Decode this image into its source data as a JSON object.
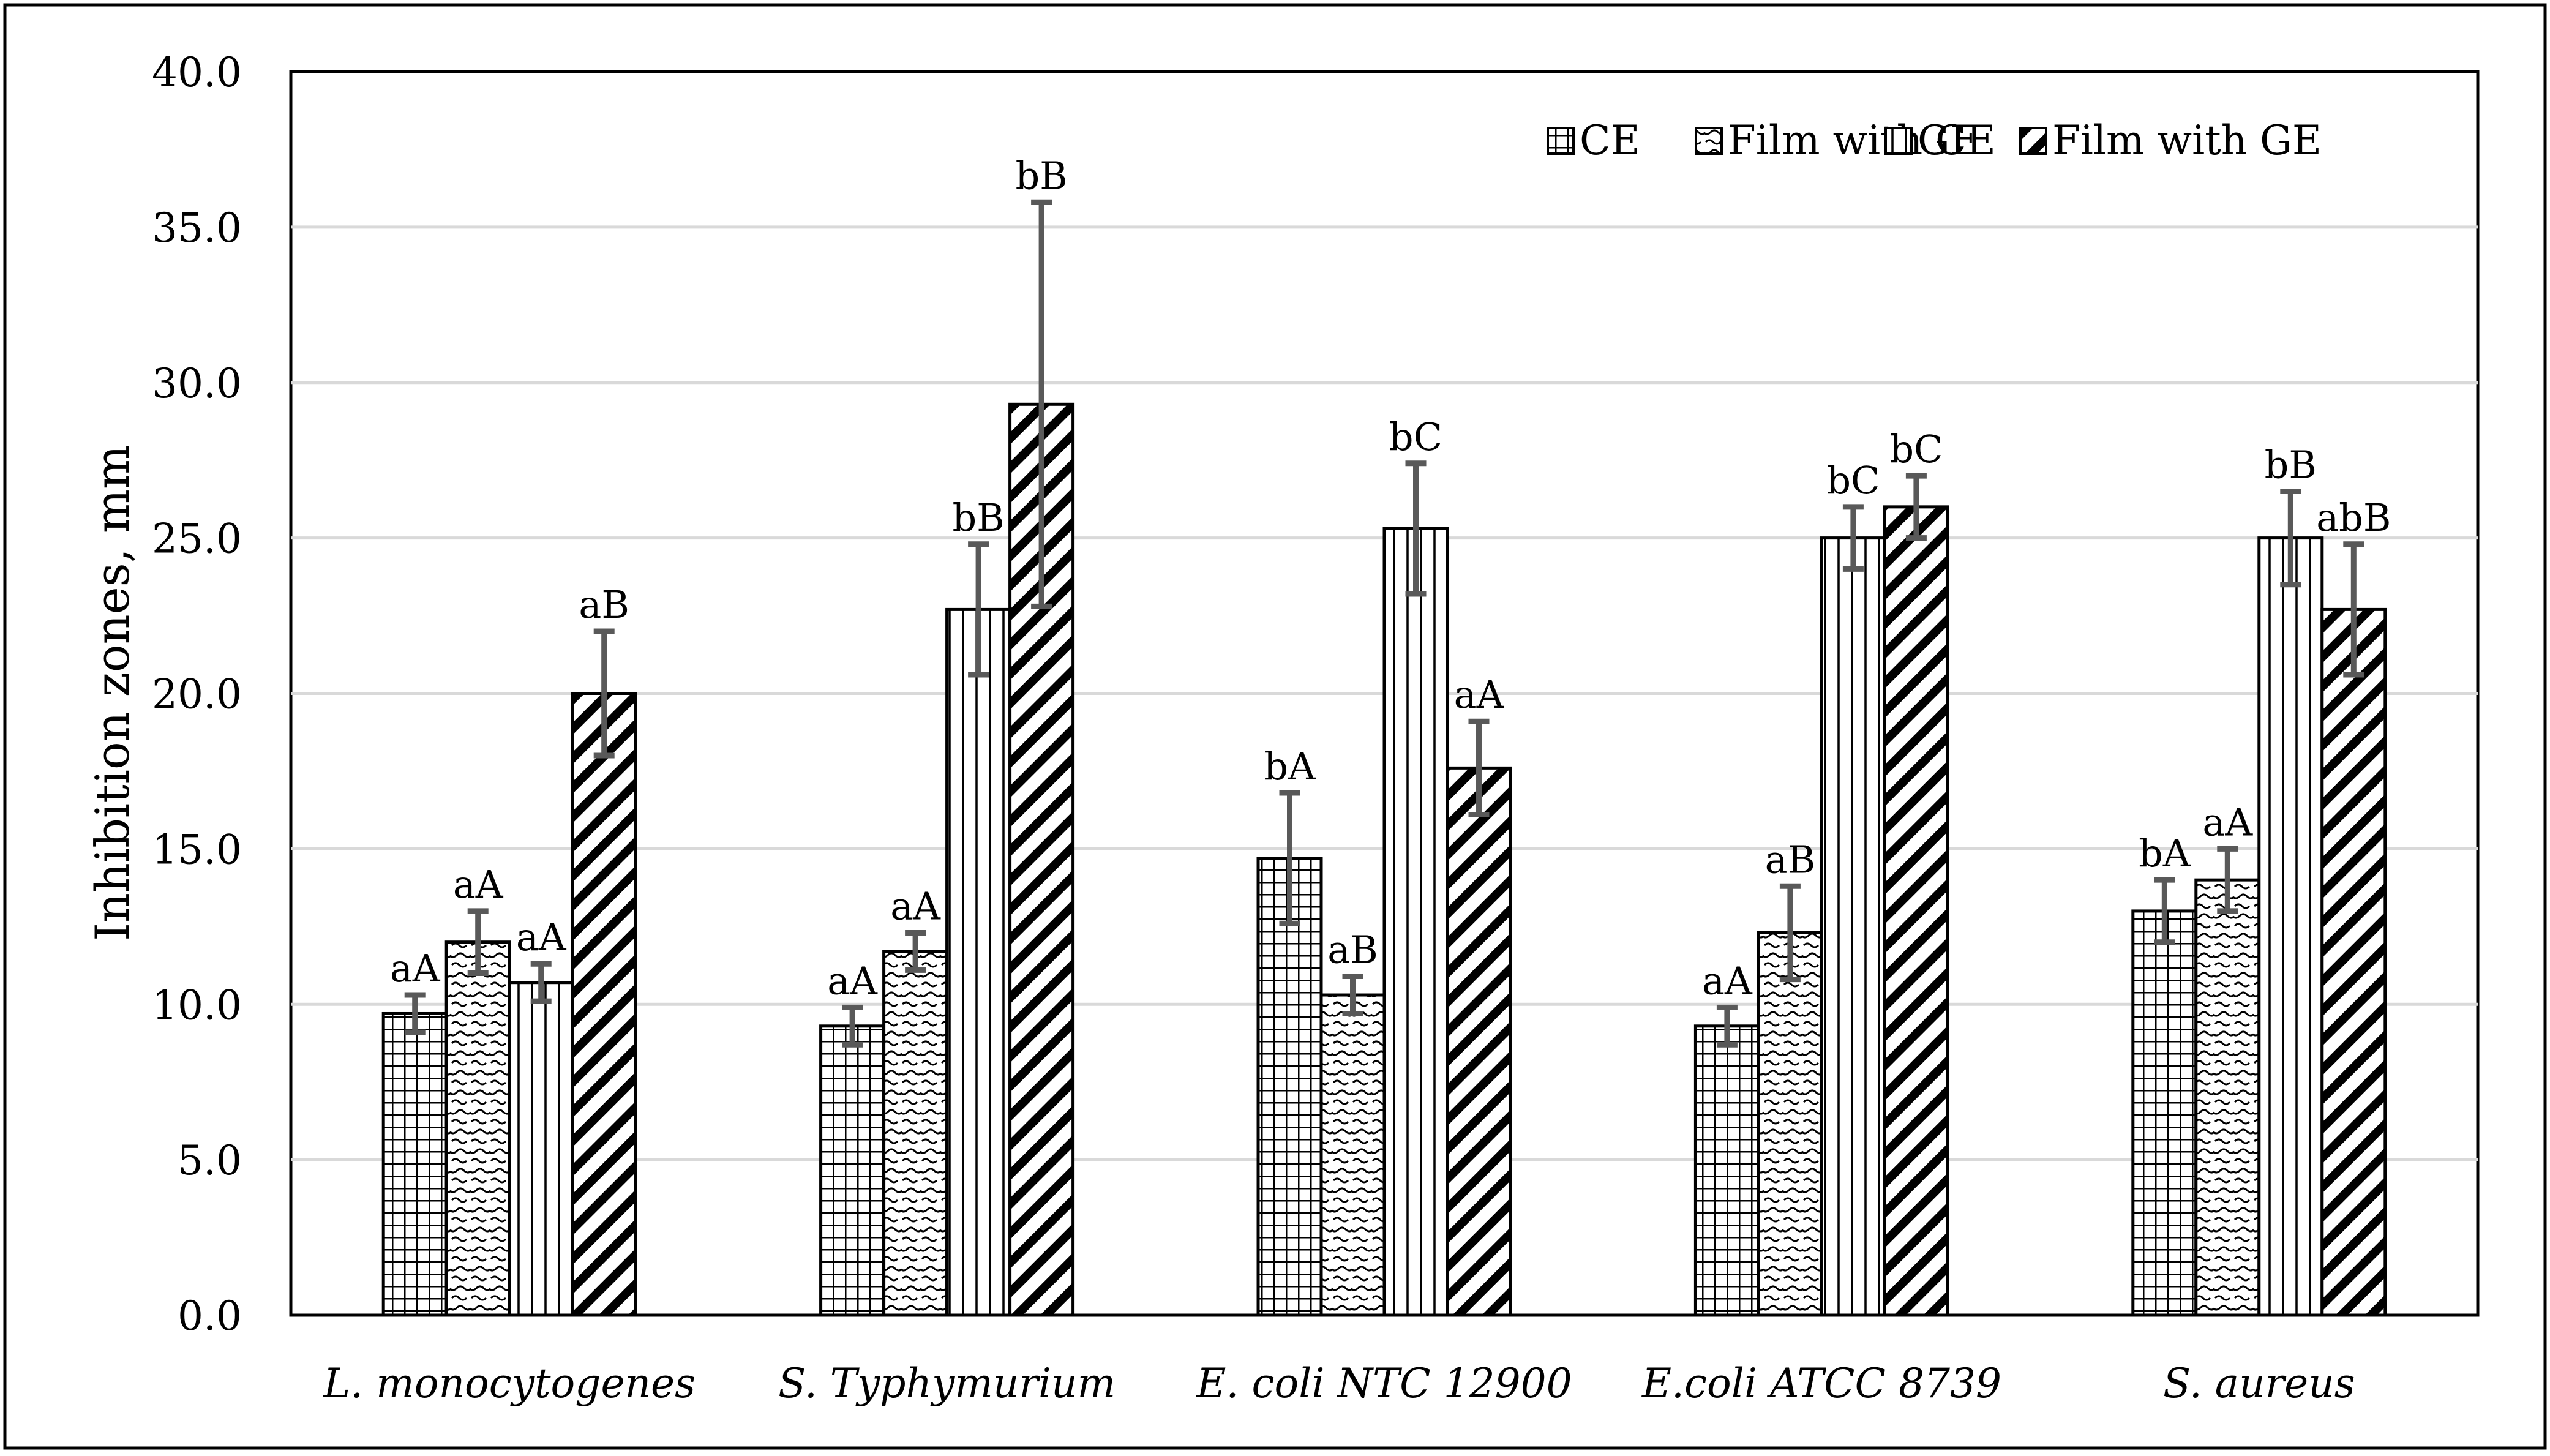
{
  "chart_data": {
    "type": "bar",
    "title": "",
    "xlabel": "",
    "ylabel": "Inhibition zones, mm",
    "ylim": [
      0,
      40
    ],
    "ytick_step": 5,
    "ytick_labels": [
      "0.0",
      "5.0",
      "10.0",
      "15.0",
      "20.0",
      "25.0",
      "30.0",
      "35.0",
      "40.0"
    ],
    "grid": true,
    "legend_position": "top-right",
    "categories": [
      "L. monocytogenes",
      "S. Typhymurium",
      "E. coli NTC 12900",
      "E.coli ATCC 8739",
      "S. aureus"
    ],
    "series": [
      {
        "name": "CE",
        "pattern": "grid",
        "values": [
          9.7,
          9.3,
          14.7,
          9.3,
          13.0
        ],
        "errors": [
          0.6,
          0.6,
          2.1,
          0.6,
          1.0
        ],
        "labels": [
          "aA",
          "aA",
          "bA",
          "aA",
          "bA"
        ]
      },
      {
        "name": "Film with CE",
        "pattern": "wave",
        "values": [
          12.0,
          11.7,
          10.3,
          12.3,
          14.0
        ],
        "errors": [
          1.0,
          0.6,
          0.6,
          1.5,
          1.0
        ],
        "labels": [
          "aA",
          "aA",
          "aB",
          "aB",
          "aA"
        ]
      },
      {
        "name": "GE",
        "pattern": "vertical",
        "values": [
          10.7,
          22.7,
          25.3,
          25.0,
          25.0
        ],
        "errors": [
          0.6,
          2.1,
          2.1,
          1.0,
          1.5
        ],
        "labels": [
          "aA",
          "bB",
          "bC",
          "bC",
          "bB"
        ]
      },
      {
        "name": "Film with GE",
        "pattern": "diagonal",
        "values": [
          20.0,
          29.3,
          17.6,
          26.0,
          22.7
        ],
        "errors": [
          2.0,
          6.5,
          1.5,
          1.0,
          2.1
        ],
        "labels": [
          "aB",
          "bB",
          "aA",
          "bC",
          "abB"
        ]
      }
    ]
  }
}
